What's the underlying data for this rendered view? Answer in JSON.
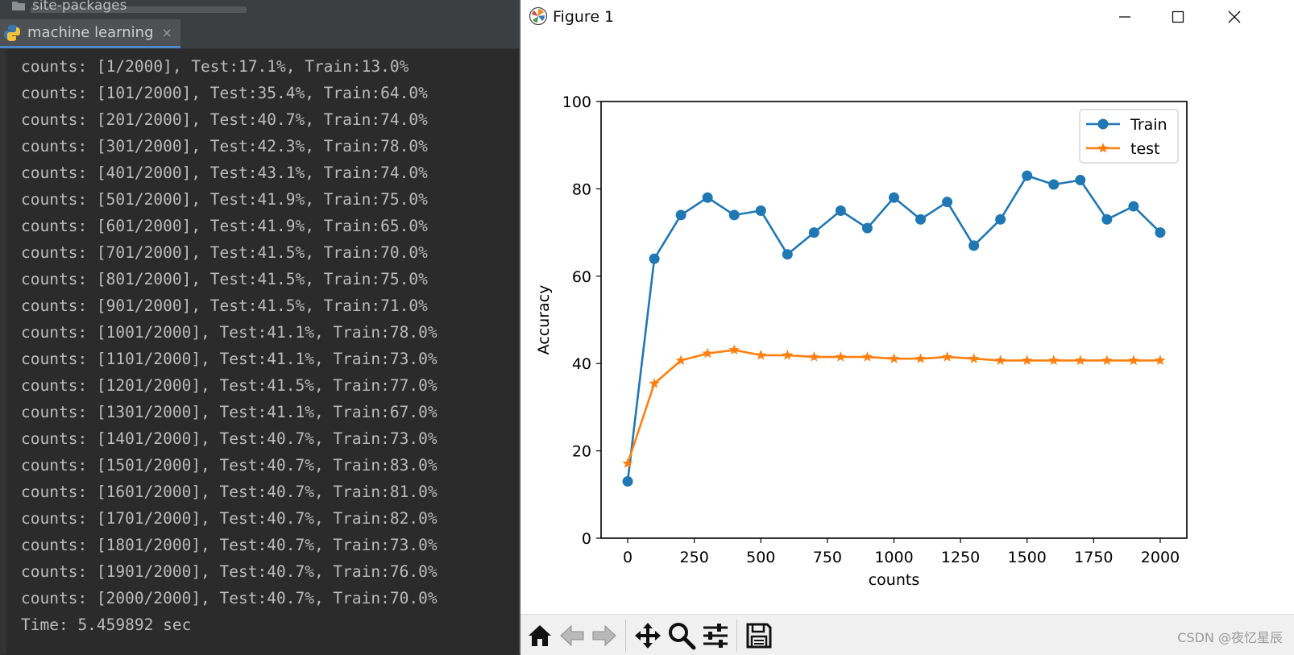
{
  "ide": {
    "top_tab": "site-packages",
    "active_tab": {
      "label": "machine learning",
      "close": "×"
    },
    "console_lines": [
      "counts: [1/2000], Test:17.1%, Train:13.0%",
      "counts: [101/2000], Test:35.4%, Train:64.0%",
      "counts: [201/2000], Test:40.7%, Train:74.0%",
      "counts: [301/2000], Test:42.3%, Train:78.0%",
      "counts: [401/2000], Test:43.1%, Train:74.0%",
      "counts: [501/2000], Test:41.9%, Train:75.0%",
      "counts: [601/2000], Test:41.9%, Train:65.0%",
      "counts: [701/2000], Test:41.5%, Train:70.0%",
      "counts: [801/2000], Test:41.5%, Train:75.0%",
      "counts: [901/2000], Test:41.5%, Train:71.0%",
      "counts: [1001/2000], Test:41.1%, Train:78.0%",
      "counts: [1101/2000], Test:41.1%, Train:73.0%",
      "counts: [1201/2000], Test:41.5%, Train:77.0%",
      "counts: [1301/2000], Test:41.1%, Train:67.0%",
      "counts: [1401/2000], Test:40.7%, Train:73.0%",
      "counts: [1501/2000], Test:40.7%, Train:83.0%",
      "counts: [1601/2000], Test:40.7%, Train:81.0%",
      "counts: [1701/2000], Test:40.7%, Train:82.0%",
      "counts: [1801/2000], Test:40.7%, Train:73.0%",
      "counts: [1901/2000], Test:40.7%, Train:76.0%",
      "counts: [2000/2000], Test:40.7%, Train:70.0%",
      "Time: 5.459892 sec"
    ],
    "colors": {
      "background": "#2b2b2b",
      "text": "#bcbcbc"
    }
  },
  "figure": {
    "title": "Figure 1",
    "window_controls": [
      "minimize-icon",
      "maximize-icon",
      "close-icon"
    ],
    "toolbar_icons": [
      "home-icon",
      "back-arrow-icon",
      "forward-arrow-icon",
      "pan-icon",
      "zoom-icon",
      "configure-subplots-icon",
      "save-icon"
    ]
  },
  "chart_data": {
    "type": "line",
    "title": "",
    "xlabel": "counts",
    "ylabel": "Accuracy",
    "xlim": [
      -100,
      2100
    ],
    "ylim": [
      0,
      100
    ],
    "xticks": [
      0,
      250,
      500,
      750,
      1000,
      1250,
      1500,
      1750,
      2000
    ],
    "yticks": [
      0,
      20,
      40,
      60,
      80,
      100
    ],
    "grid": false,
    "legend": "top-right",
    "x": [
      0,
      100,
      200,
      300,
      400,
      500,
      600,
      700,
      800,
      900,
      1000,
      1100,
      1200,
      1300,
      1400,
      1500,
      1600,
      1700,
      1800,
      1900,
      2000
    ],
    "series": [
      {
        "name": "Train",
        "marker": "circle",
        "color": "#1f77b4",
        "values": [
          13,
          64,
          74,
          78,
          74,
          75,
          65,
          70,
          75,
          71,
          78,
          73,
          77,
          67,
          73,
          83,
          81,
          82,
          73,
          76,
          70
        ]
      },
      {
        "name": "test",
        "marker": "star",
        "color": "#ff7f0e",
        "values": [
          17.1,
          35.4,
          40.7,
          42.3,
          43.1,
          41.9,
          41.9,
          41.5,
          41.5,
          41.5,
          41.1,
          41.1,
          41.5,
          41.1,
          40.7,
          40.7,
          40.7,
          40.7,
          40.7,
          40.7,
          40.7
        ]
      }
    ]
  },
  "watermark": "CSDN @夜忆星辰"
}
